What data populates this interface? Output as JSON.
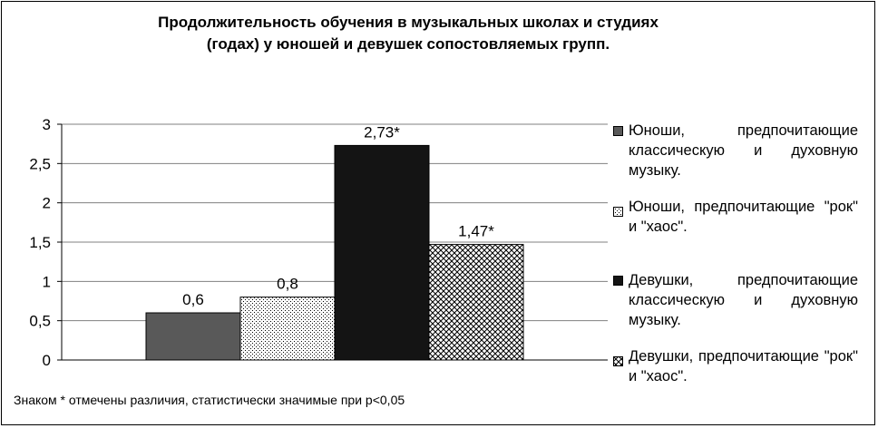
{
  "title_line1": "Продолжительность обучения в музыкальных школах и студиях",
  "title_line2": "(годах) у юношей и девушек сопостовляемых групп.",
  "footnote": "Знаком * отмечены различия, статистически значимые при p<0,05",
  "chart_data": {
    "type": "bar",
    "categories": [
      ""
    ],
    "series": [
      {
        "name": "Юноши, предпочитающие классическую и духовную музыку.",
        "values": [
          0.6
        ],
        "label": "0,6",
        "pattern": "dark-gray"
      },
      {
        "name": "Юноши, предпочитающие \"рок\" и \"хаос\".",
        "values": [
          0.8
        ],
        "label": "0,8",
        "pattern": "dots"
      },
      {
        "name": "Девушки, предпочитающие классическую и духовную музыку.",
        "values": [
          2.73
        ],
        "label": "2,73*",
        "pattern": "black"
      },
      {
        "name": "Девушки, предпочитающие \"рок\" и \"хаос\".",
        "values": [
          1.47
        ],
        "label": "1,47*",
        "pattern": "crosshatch"
      }
    ],
    "ylim": [
      0,
      3
    ],
    "yticks": [
      0,
      0.5,
      1,
      1.5,
      2,
      2.5,
      3
    ],
    "ytick_labels": [
      "0",
      "0,5",
      "1",
      "1,5",
      "2",
      "2,5",
      "3"
    ],
    "grid": true,
    "legend_position": "right",
    "colors": {
      "dark": "#595959",
      "black": "#141414",
      "grid": "#808080"
    }
  }
}
